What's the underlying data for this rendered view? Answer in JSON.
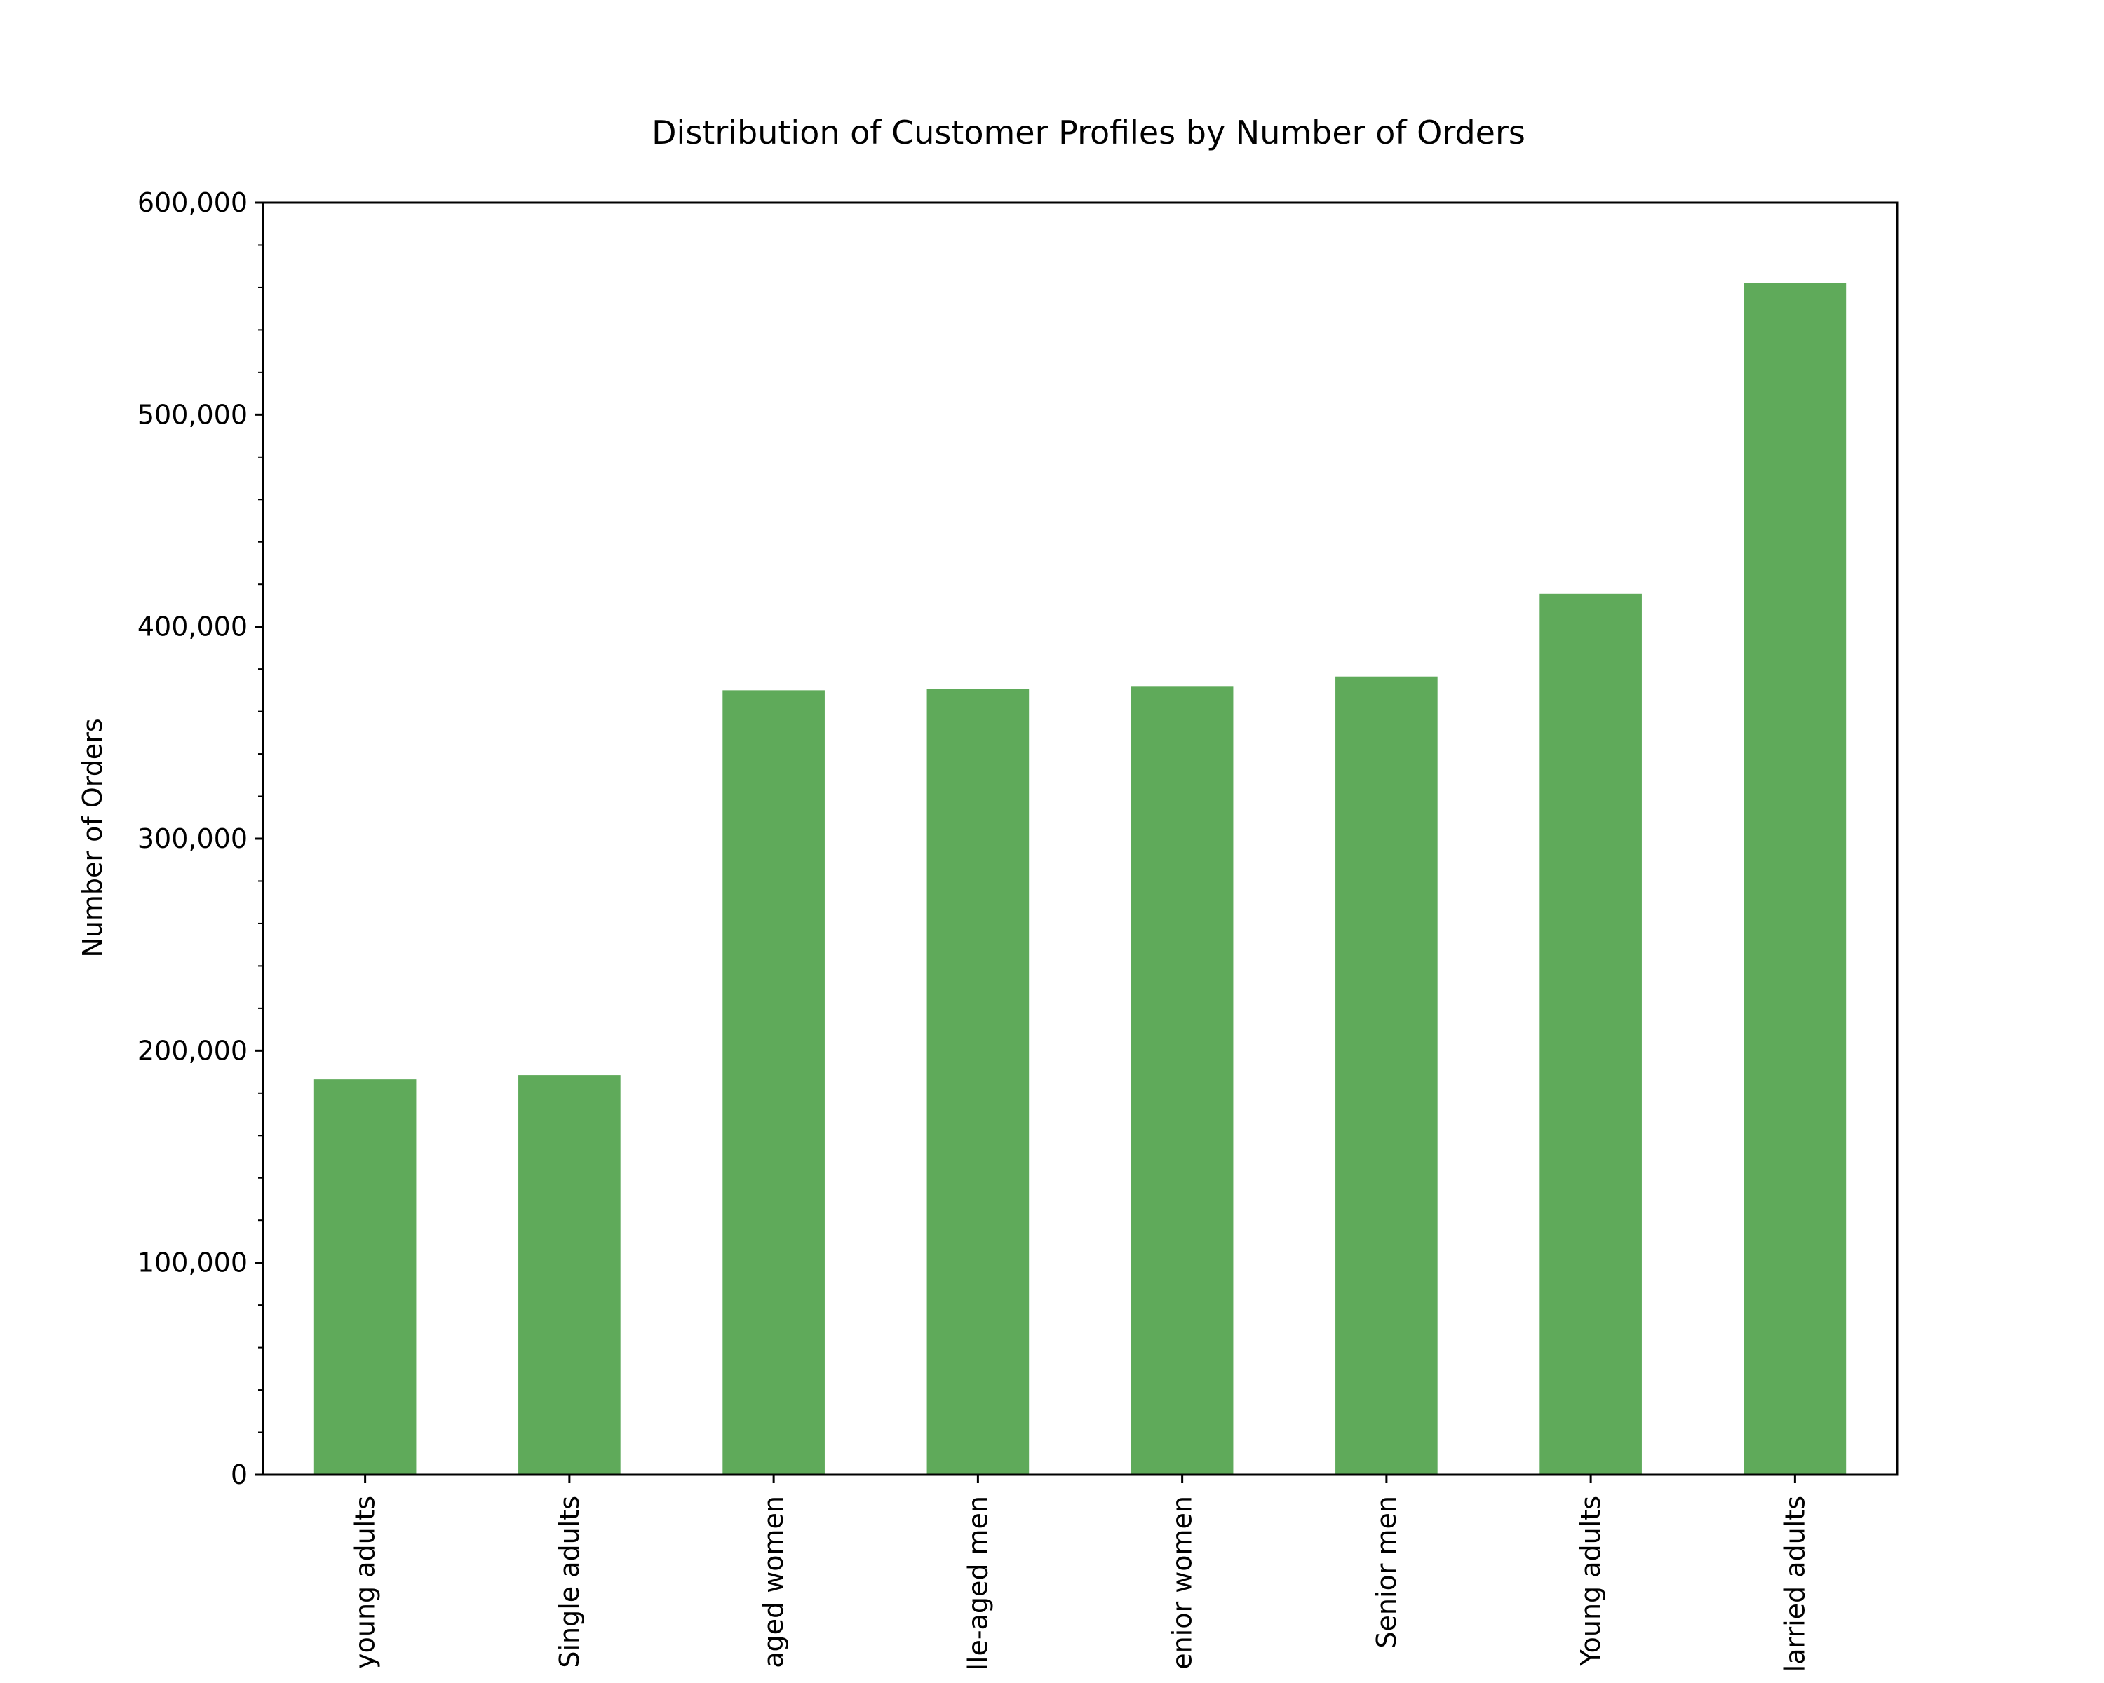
{
  "chart_data": {
    "type": "bar",
    "title": "Distribution of Customer Profiles by Number of Orders",
    "xlabel": "",
    "ylabel": "Number of Orders",
    "ylim": [
      0,
      600000
    ],
    "yticks": [
      0,
      100000,
      200000,
      300000,
      400000,
      500000,
      600000
    ],
    "ytick_labels": [
      "0",
      "100,000",
      "200,000",
      "300,000",
      "400,000",
      "500,000",
      "600,000"
    ],
    "categories": [
      "young adults",
      "Single adults",
      "aged women",
      "lle-aged men",
      "enior women",
      "Senior men",
      "Young adults",
      "larried adults"
    ],
    "values": [
      186500,
      188500,
      370000,
      370500,
      372000,
      376500,
      415500,
      562000
    ],
    "bar_color": "#5faa5a",
    "grid": false,
    "legend": "none"
  }
}
